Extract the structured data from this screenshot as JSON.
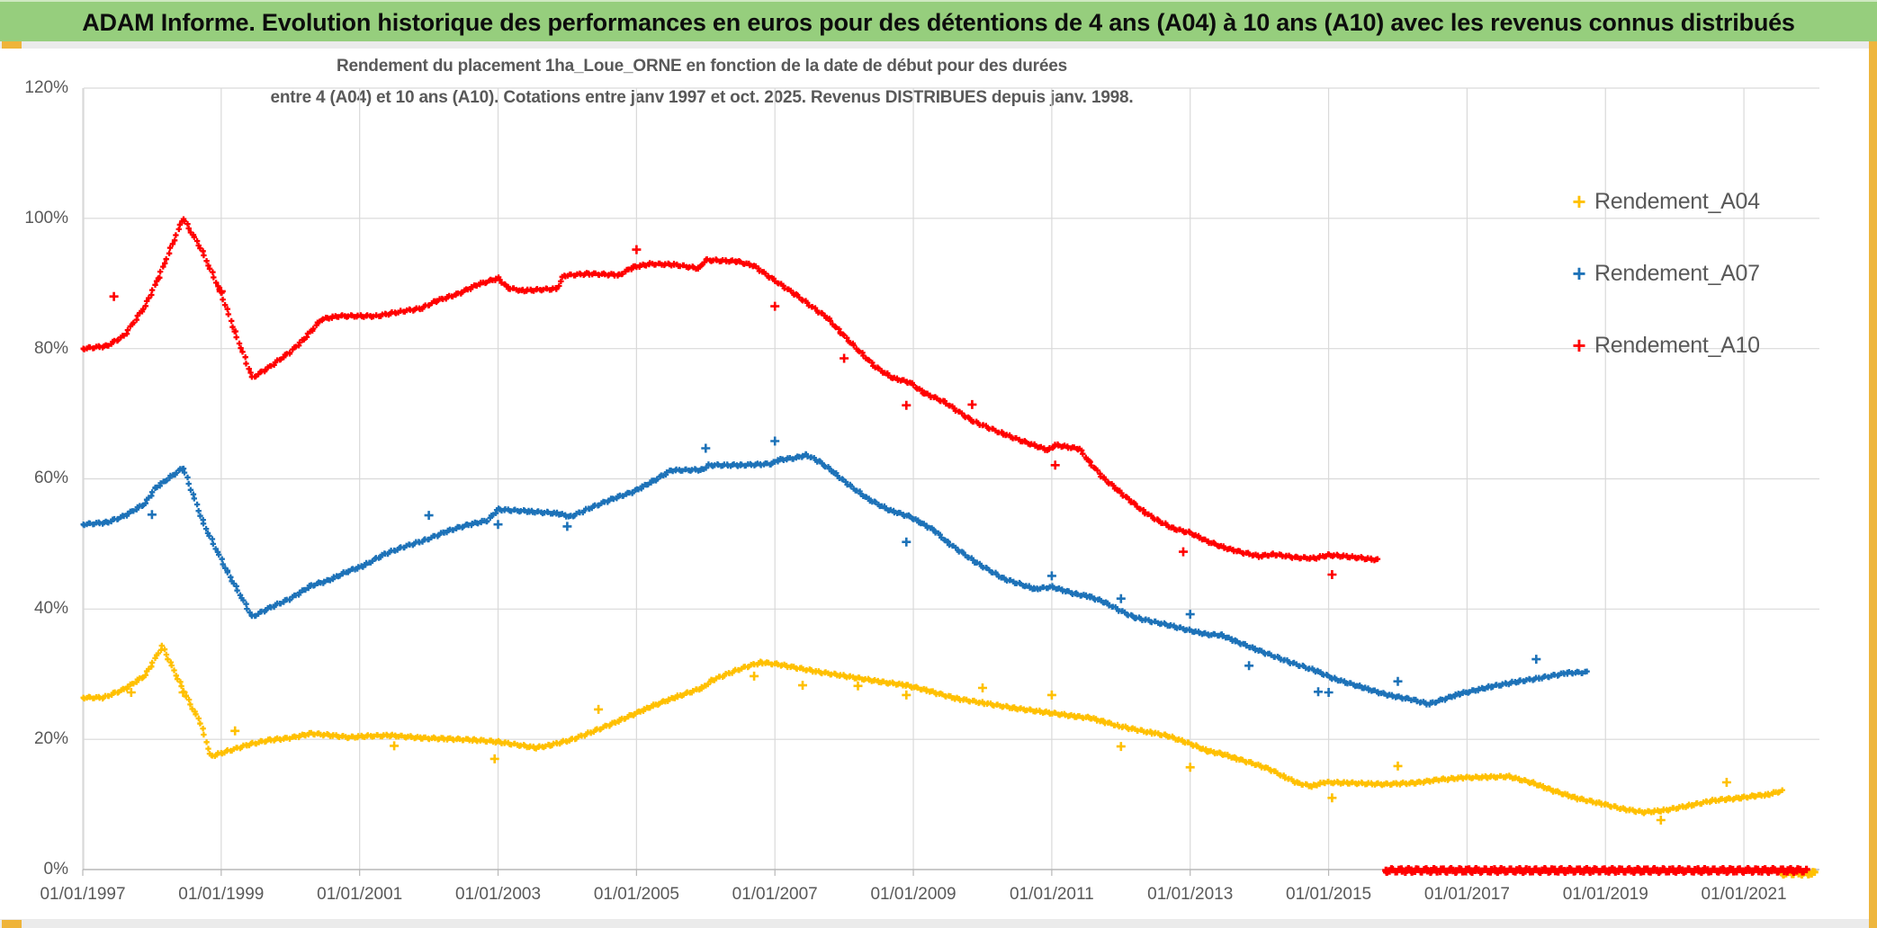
{
  "header": {
    "title": "ADAM Informe. Evolution historique des performances en euros pour des détentions de 4 ans (A04) à 10 ans (A10) avec les revenus connus distribués"
  },
  "chart_data": {
    "type": "scatter",
    "marker": "plus",
    "title_line1": "Rendement du placement 1ha_Loue_ORNE en fonction de la date de début pour des durées",
    "title_line2": "entre 4 (A04) et 10 ans (A10). Cotations entre janv 1997 et oct. 2025. Revenus DISTRIBUES depuis janv. 1998.",
    "grid": true,
    "legend_position": "right",
    "xlim": [
      1996.55,
      2022.15
    ],
    "ylim": [
      0,
      120
    ],
    "x_tick_years": [
      1997,
      1999,
      2001,
      2003,
      2005,
      2007,
      2009,
      2011,
      2013,
      2015,
      2017,
      2019,
      2021
    ],
    "x_tick_labels": [
      "01/01/1997",
      "01/01/1999",
      "01/01/2001",
      "01/01/2003",
      "01/01/2005",
      "01/01/2007",
      "01/01/2009",
      "01/01/2011",
      "01/01/2013",
      "01/01/2015",
      "01/01/2017",
      "01/01/2019",
      "01/01/2021"
    ],
    "y_tick_values": [
      0,
      20,
      40,
      60,
      80,
      100,
      120
    ],
    "y_tick_labels": [
      "0%",
      "20%",
      "40%",
      "60%",
      "80%",
      "100%",
      "120%"
    ],
    "grid_color": "#d9d9d9",
    "axis_color": "#b7b7b7",
    "series": [
      {
        "name": "Rendement_A04",
        "color": "#FFC000",
        "zero_segment": [
          2021.55,
          2022.05
        ],
        "zero_offset": 4,
        "points": [
          [
            1997.0,
            26.4
          ],
          [
            1997.3,
            26.4
          ],
          [
            1997.6,
            27.7
          ],
          [
            1997.9,
            29.8
          ],
          [
            1998.15,
            34.3
          ],
          [
            1998.5,
            26.5
          ],
          [
            1998.7,
            22.5
          ],
          [
            1998.85,
            17.4
          ],
          [
            1999.1,
            18.2
          ],
          [
            1999.4,
            19.2
          ],
          [
            1999.7,
            19.9
          ],
          [
            2000.0,
            20.2
          ],
          [
            2000.3,
            20.9
          ],
          [
            2000.6,
            20.6
          ],
          [
            2000.85,
            20.3
          ],
          [
            2001.1,
            20.5
          ],
          [
            2001.45,
            20.6
          ],
          [
            2001.9,
            20.2
          ],
          [
            2002.2,
            20.1
          ],
          [
            2002.65,
            19.9
          ],
          [
            2003.0,
            19.6
          ],
          [
            2003.25,
            19.2
          ],
          [
            2003.55,
            18.7
          ],
          [
            2003.75,
            19.1
          ],
          [
            2004.05,
            19.9
          ],
          [
            2004.35,
            21.1
          ],
          [
            2004.65,
            22.4
          ],
          [
            2004.95,
            23.8
          ],
          [
            2005.25,
            25.2
          ],
          [
            2005.6,
            26.6
          ],
          [
            2005.95,
            27.9
          ],
          [
            2006.1,
            29.1
          ],
          [
            2006.35,
            30.2
          ],
          [
            2006.6,
            31.2
          ],
          [
            2006.8,
            31.8
          ],
          [
            2007.05,
            31.5
          ],
          [
            2007.3,
            31.0
          ],
          [
            2007.6,
            30.4
          ],
          [
            2007.9,
            29.9
          ],
          [
            2008.2,
            29.4
          ],
          [
            2008.55,
            28.8
          ],
          [
            2008.9,
            28.3
          ],
          [
            2009.2,
            27.5
          ],
          [
            2009.6,
            26.3
          ],
          [
            2010.0,
            25.6
          ],
          [
            2010.45,
            24.8
          ],
          [
            2010.95,
            24.1
          ],
          [
            2011.35,
            23.5
          ],
          [
            2011.55,
            23.3
          ],
          [
            2011.75,
            22.7
          ],
          [
            2011.95,
            22.1
          ],
          [
            2012.25,
            21.4
          ],
          [
            2012.45,
            21.0
          ],
          [
            2012.65,
            20.6
          ],
          [
            2012.9,
            19.7
          ],
          [
            2013.05,
            19.1
          ],
          [
            2013.25,
            18.2
          ],
          [
            2013.45,
            17.8
          ],
          [
            2013.65,
            17.1
          ],
          [
            2013.9,
            16.3
          ],
          [
            2014.15,
            15.4
          ],
          [
            2014.35,
            14.3
          ],
          [
            2014.55,
            13.3
          ],
          [
            2014.75,
            12.8
          ],
          [
            2014.95,
            13.4
          ],
          [
            2015.3,
            13.3
          ],
          [
            2015.8,
            13.1
          ],
          [
            2016.25,
            13.3
          ],
          [
            2016.6,
            13.8
          ],
          [
            2016.95,
            14.1
          ],
          [
            2017.3,
            14.2
          ],
          [
            2017.6,
            14.3
          ],
          [
            2017.95,
            13.3
          ],
          [
            2018.25,
            12.1
          ],
          [
            2018.6,
            10.9
          ],
          [
            2018.95,
            10.1
          ],
          [
            2019.25,
            9.3
          ],
          [
            2019.55,
            8.8
          ],
          [
            2019.85,
            9.1
          ],
          [
            2020.25,
            9.9
          ],
          [
            2020.55,
            10.6
          ],
          [
            2020.75,
            10.8
          ],
          [
            2020.95,
            11.0
          ],
          [
            2021.15,
            11.3
          ],
          [
            2021.35,
            11.5
          ],
          [
            2021.55,
            12.1
          ]
        ],
        "outliers": [
          [
            1997.7,
            27.2
          ],
          [
            1998.45,
            27.2
          ],
          [
            1999.2,
            21.3
          ],
          [
            2001.5,
            19.0
          ],
          [
            2002.95,
            17.0
          ],
          [
            2004.45,
            24.6
          ],
          [
            2006.7,
            29.7
          ],
          [
            2007.4,
            28.3
          ],
          [
            2008.2,
            28.2
          ],
          [
            2008.9,
            26.8
          ],
          [
            2010.0,
            27.9
          ],
          [
            2011.0,
            26.8
          ],
          [
            2012.0,
            18.9
          ],
          [
            2013.0,
            15.7
          ],
          [
            2015.05,
            11.0
          ],
          [
            2016.0,
            15.9
          ],
          [
            2019.8,
            7.6
          ],
          [
            2020.75,
            13.4
          ]
        ]
      },
      {
        "name": "Rendement_A07",
        "color": "#1D72B8",
        "zero_segment": null,
        "zero_offset": 0,
        "points": [
          [
            1997.0,
            53.0
          ],
          [
            1997.35,
            53.3
          ],
          [
            1997.6,
            54.3
          ],
          [
            1997.9,
            56.2
          ],
          [
            1998.05,
            58.6
          ],
          [
            1998.45,
            61.7
          ],
          [
            1998.75,
            53.0
          ],
          [
            1999.1,
            45.5
          ],
          [
            1999.45,
            38.8
          ],
          [
            1999.7,
            40.2
          ],
          [
            2000.0,
            41.6
          ],
          [
            2000.3,
            43.6
          ],
          [
            2000.55,
            44.4
          ],
          [
            2000.85,
            45.9
          ],
          [
            2001.05,
            46.6
          ],
          [
            2001.35,
            48.4
          ],
          [
            2001.65,
            49.6
          ],
          [
            2001.95,
            50.6
          ],
          [
            2002.25,
            51.9
          ],
          [
            2002.55,
            52.9
          ],
          [
            2002.85,
            53.6
          ],
          [
            2003.0,
            55.3
          ],
          [
            2003.45,
            55.0
          ],
          [
            2003.85,
            54.7
          ],
          [
            2004.05,
            54.2
          ],
          [
            2004.35,
            55.6
          ],
          [
            2004.65,
            56.9
          ],
          [
            2004.95,
            58.0
          ],
          [
            2005.25,
            59.7
          ],
          [
            2005.5,
            61.3
          ],
          [
            2005.95,
            61.4
          ],
          [
            2006.05,
            62.1
          ],
          [
            2006.5,
            62.1
          ],
          [
            2006.95,
            62.3
          ],
          [
            2007.05,
            62.9
          ],
          [
            2007.3,
            63.2
          ],
          [
            2007.45,
            63.7
          ],
          [
            2007.65,
            62.6
          ],
          [
            2007.85,
            61.0
          ],
          [
            2008.05,
            59.2
          ],
          [
            2008.35,
            56.9
          ],
          [
            2008.65,
            55.2
          ],
          [
            2008.95,
            54.2
          ],
          [
            2009.1,
            53.3
          ],
          [
            2009.3,
            52.1
          ],
          [
            2009.5,
            50.2
          ],
          [
            2009.9,
            47.2
          ],
          [
            2010.3,
            44.7
          ],
          [
            2010.75,
            43.1
          ],
          [
            2011.0,
            43.4
          ],
          [
            2011.35,
            42.3
          ],
          [
            2011.55,
            41.9
          ],
          [
            2011.75,
            41.1
          ],
          [
            2012.0,
            39.7
          ],
          [
            2012.2,
            38.7
          ],
          [
            2012.45,
            38.1
          ],
          [
            2012.7,
            37.5
          ],
          [
            2013.0,
            36.7
          ],
          [
            2013.25,
            36.1
          ],
          [
            2013.45,
            36.0
          ],
          [
            2013.65,
            35.1
          ],
          [
            2013.95,
            33.8
          ],
          [
            2014.45,
            31.8
          ],
          [
            2014.85,
            30.4
          ],
          [
            2015.05,
            29.4
          ],
          [
            2015.45,
            28.1
          ],
          [
            2015.85,
            26.8
          ],
          [
            2016.2,
            26.1
          ],
          [
            2016.45,
            25.4
          ],
          [
            2016.9,
            27.0
          ],
          [
            2017.35,
            28.1
          ],
          [
            2017.75,
            28.9
          ],
          [
            2018.05,
            29.4
          ],
          [
            2018.45,
            30.2
          ],
          [
            2018.75,
            30.3
          ]
        ],
        "outliers": [
          [
            1998.0,
            54.5
          ],
          [
            2002.0,
            54.4
          ],
          [
            2003.0,
            53.0
          ],
          [
            2004.0,
            52.7
          ],
          [
            2006.0,
            64.7
          ],
          [
            2007.0,
            65.8
          ],
          [
            2008.9,
            50.3
          ],
          [
            2011.0,
            45.1
          ],
          [
            2012.0,
            41.6
          ],
          [
            2013.0,
            39.2
          ],
          [
            2013.85,
            31.3
          ],
          [
            2014.85,
            27.3
          ],
          [
            2015.0,
            27.2
          ],
          [
            2016.0,
            28.9
          ],
          [
            2018.0,
            32.3
          ]
        ]
      },
      {
        "name": "Rendement_A10",
        "color": "#FF0000",
        "zero_segment": [
          2015.82,
          2021.9
        ],
        "zero_offset": 1,
        "points": [
          [
            1997.0,
            80.0
          ],
          [
            1997.35,
            80.4
          ],
          [
            1997.6,
            82.0
          ],
          [
            1997.9,
            86.5
          ],
          [
            1998.1,
            91.0
          ],
          [
            1998.45,
            100.0
          ],
          [
            1998.7,
            95.5
          ],
          [
            1999.0,
            88.5
          ],
          [
            1999.2,
            82.5
          ],
          [
            1999.45,
            75.5
          ],
          [
            1999.7,
            77.2
          ],
          [
            2000.0,
            79.5
          ],
          [
            2000.2,
            81.5
          ],
          [
            2000.45,
            84.5
          ],
          [
            2000.7,
            85.0
          ],
          [
            2001.25,
            85.0
          ],
          [
            2001.6,
            85.7
          ],
          [
            2001.9,
            86.2
          ],
          [
            2002.1,
            87.3
          ],
          [
            2002.4,
            88.3
          ],
          [
            2002.7,
            89.8
          ],
          [
            2003.0,
            90.8
          ],
          [
            2003.15,
            89.3
          ],
          [
            2003.35,
            88.9
          ],
          [
            2003.85,
            89.2
          ],
          [
            2003.95,
            91.2
          ],
          [
            2004.3,
            91.5
          ],
          [
            2004.75,
            91.3
          ],
          [
            2004.95,
            92.5
          ],
          [
            2005.2,
            93.0
          ],
          [
            2005.55,
            92.9
          ],
          [
            2005.9,
            92.3
          ],
          [
            2006.0,
            93.6
          ],
          [
            2006.45,
            93.4
          ],
          [
            2006.7,
            92.7
          ],
          [
            2006.95,
            90.8
          ],
          [
            2007.3,
            88.3
          ],
          [
            2007.55,
            86.3
          ],
          [
            2007.75,
            84.8
          ],
          [
            2007.95,
            82.5
          ],
          [
            2008.2,
            79.8
          ],
          [
            2008.45,
            77.2
          ],
          [
            2008.7,
            75.5
          ],
          [
            2008.95,
            74.8
          ],
          [
            2009.15,
            73.2
          ],
          [
            2009.45,
            71.8
          ],
          [
            2009.85,
            68.9
          ],
          [
            2010.3,
            66.9
          ],
          [
            2010.6,
            65.7
          ],
          [
            2010.95,
            64.4
          ],
          [
            2011.05,
            65.2
          ],
          [
            2011.4,
            64.6
          ],
          [
            2011.55,
            62.5
          ],
          [
            2011.75,
            60.1
          ],
          [
            2011.95,
            58.3
          ],
          [
            2012.15,
            56.5
          ],
          [
            2012.35,
            54.8
          ],
          [
            2012.55,
            53.5
          ],
          [
            2012.75,
            52.4
          ],
          [
            2013.0,
            51.7
          ],
          [
            2013.25,
            50.4
          ],
          [
            2013.5,
            49.4
          ],
          [
            2013.75,
            48.7
          ],
          [
            2014.0,
            48.1
          ],
          [
            2014.2,
            48.4
          ],
          [
            2014.55,
            47.9
          ],
          [
            2014.8,
            47.8
          ],
          [
            2015.0,
            48.3
          ],
          [
            2015.35,
            48.0
          ],
          [
            2015.74,
            47.5
          ]
        ],
        "outliers": [
          [
            1997.45,
            88.0
          ],
          [
            1999.0,
            88.8
          ],
          [
            2005.0,
            95.2
          ],
          [
            2007.0,
            86.5
          ],
          [
            2008.0,
            78.5
          ],
          [
            2008.9,
            71.3
          ],
          [
            2009.85,
            71.4
          ],
          [
            2011.05,
            62.1
          ],
          [
            2012.9,
            48.8
          ],
          [
            2015.05,
            45.3
          ]
        ]
      }
    ]
  }
}
